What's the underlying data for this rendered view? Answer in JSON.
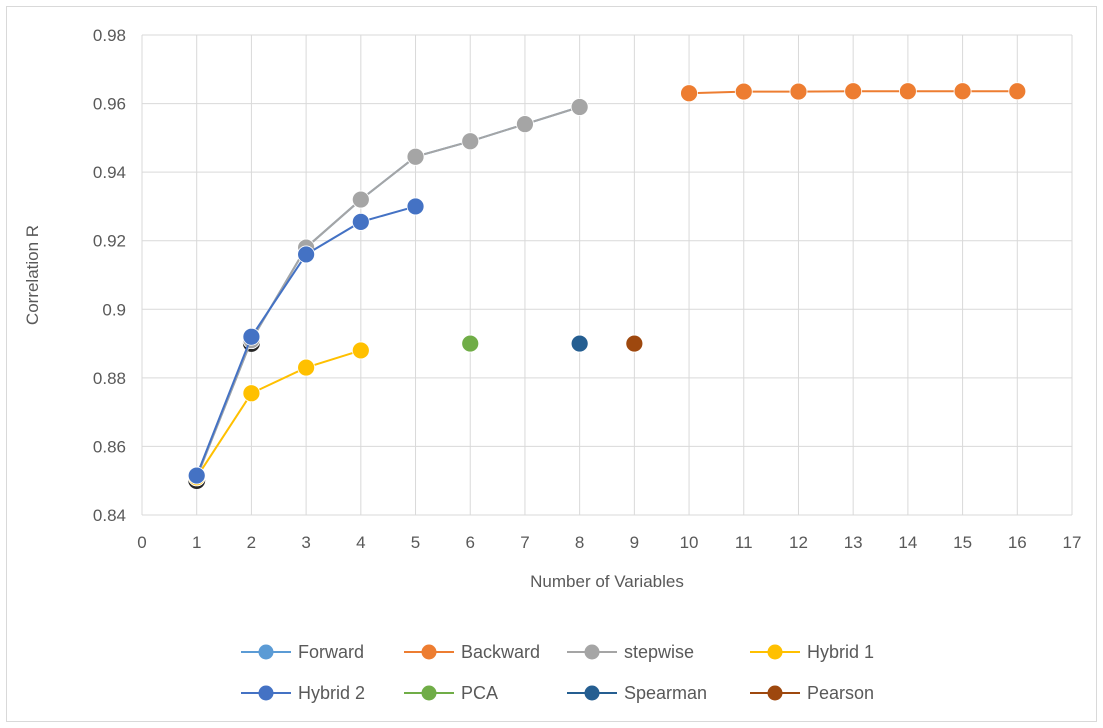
{
  "chart_data": {
    "type": "scatter",
    "title": "",
    "xlabel": "Number of Variables",
    "ylabel": "Correlation R",
    "xlim": [
      0,
      17
    ],
    "ylim": [
      0.84,
      0.98
    ],
    "x_ticks": [
      0,
      1,
      2,
      3,
      4,
      5,
      6,
      7,
      8,
      9,
      10,
      11,
      12,
      13,
      14,
      15,
      16,
      17
    ],
    "y_ticks": [
      0.84,
      0.86,
      0.88,
      0.9,
      0.92,
      0.94,
      0.96,
      0.98
    ],
    "x_tick_labels": [
      "0",
      "1",
      "2",
      "3",
      "4",
      "5",
      "6",
      "7",
      "8",
      "9",
      "10",
      "11",
      "12",
      "13",
      "14",
      "15",
      "16",
      "17"
    ],
    "y_tick_labels": [
      "0.84",
      "0.86",
      "0.88",
      "0.9",
      "0.92",
      "0.94",
      "0.96",
      "0.98"
    ],
    "grid": true,
    "legend_position": "bottom",
    "series": [
      {
        "name": "Forward",
        "color": "#5b9bd5",
        "x": [
          1,
          2,
          3,
          4,
          5,
          6,
          7,
          8
        ],
        "y": [
          0.851,
          0.891,
          0.918,
          0.932,
          0.9445,
          0.949,
          0.954,
          0.959
        ]
      },
      {
        "name": "Backward",
        "color": "#ed7d31",
        "x": [
          10,
          11,
          12,
          13,
          14,
          15,
          16
        ],
        "y": [
          0.963,
          0.9635,
          0.9635,
          0.9636,
          0.9636,
          0.9636,
          0.9636
        ]
      },
      {
        "name": "stepwise",
        "color": "#a5a5a5",
        "x": [
          1,
          2,
          3,
          4,
          5,
          6,
          7,
          8
        ],
        "y": [
          0.851,
          0.891,
          0.918,
          0.932,
          0.9445,
          0.949,
          0.954,
          0.959
        ]
      },
      {
        "name": "Hybrid 1",
        "color": "#ffc000",
        "x": [
          1,
          2,
          3,
          4
        ],
        "y": [
          0.851,
          0.8755,
          0.883,
          0.888
        ]
      },
      {
        "name": "Hybrid 2",
        "color": "#4472c4",
        "x": [
          1,
          2,
          3,
          4,
          5
        ],
        "y": [
          0.8515,
          0.892,
          0.916,
          0.9255,
          0.93
        ]
      },
      {
        "name": "PCA",
        "color": "#70ad47",
        "x": [
          6
        ],
        "y": [
          0.89
        ]
      },
      {
        "name": "Spearman",
        "color": "#255e91",
        "x": [
          8
        ],
        "y": [
          0.89
        ]
      },
      {
        "name": "Pearson",
        "color": "#9e480e",
        "x": [
          9
        ],
        "y": [
          0.89
        ]
      }
    ],
    "overlay_markers": [
      {
        "color": "#262626",
        "x": [
          1,
          2
        ],
        "y": [
          0.8505,
          0.8905
        ]
      }
    ]
  }
}
